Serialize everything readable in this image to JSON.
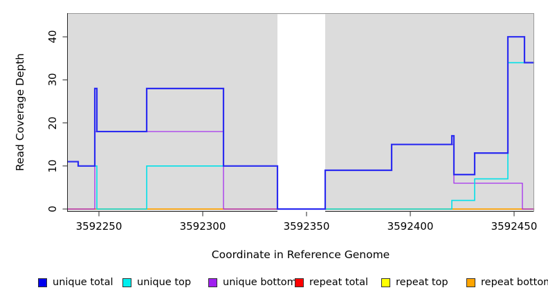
{
  "chart_data": {
    "type": "line",
    "step": true,
    "title": "",
    "xlabel": "Coordinate in Reference Genome",
    "ylabel": "Read Coverage Depth",
    "xlim": [
      3592234.7,
      3592459.7
    ],
    "ylim": [
      0,
      45
    ],
    "x_ticks": [
      3592250,
      3592300,
      3592350,
      3592400,
      3592450
    ],
    "y_ticks": [
      0,
      10,
      20,
      30,
      40
    ],
    "grid": false,
    "plot_background": "#DCDCDC",
    "highlight_band": {
      "x_start": 3592336,
      "x_end": 3592359,
      "color": "#FFFFFF"
    },
    "series": [
      {
        "name": "repeat total",
        "color": "#FF0000",
        "width": 1.2,
        "steps": [
          [
            3592234.7,
            0
          ]
        ]
      },
      {
        "name": "repeat top",
        "color": "#FFFF00",
        "width": 1.2,
        "steps": [
          [
            3592234.7,
            0
          ]
        ]
      },
      {
        "name": "repeat bottom",
        "color": "#FFA500",
        "width": 1.6,
        "steps": [
          [
            3592234.7,
            0
          ]
        ]
      },
      {
        "name": "unique bottom",
        "color": "#A020F0",
        "width": 1.2,
        "steps": [
          [
            3592234.7,
            0
          ],
          [
            3592248,
            18
          ],
          [
            3592310,
            0
          ],
          [
            3592359,
            9
          ],
          [
            3592391,
            15
          ],
          [
            3592421,
            6
          ],
          [
            3592454,
            0
          ]
        ]
      },
      {
        "name": "unique top",
        "color": "#00E0E8",
        "width": 1.6,
        "steps": [
          [
            3592234.7,
            11
          ],
          [
            3592240,
            10
          ],
          [
            3592249,
            0
          ],
          [
            3592273,
            10
          ],
          [
            3592336,
            0
          ],
          [
            3592420,
            2
          ],
          [
            3592431,
            7
          ],
          [
            3592447,
            34
          ]
        ]
      },
      {
        "name": "unique total",
        "color": "#2B2BF0",
        "width": 2.2,
        "steps": [
          [
            3592234.7,
            11
          ],
          [
            3592240,
            10
          ],
          [
            3592248,
            28
          ],
          [
            3592249,
            18
          ],
          [
            3592273,
            28
          ],
          [
            3592310,
            10
          ],
          [
            3592336,
            0
          ],
          [
            3592359,
            9
          ],
          [
            3592391,
            15
          ],
          [
            3592420,
            17
          ],
          [
            3592421,
            8
          ],
          [
            3592431,
            13
          ],
          [
            3592447,
            40
          ],
          [
            3592455,
            34
          ]
        ]
      }
    ]
  },
  "legend": {
    "items": [
      {
        "label": "unique total",
        "color": "#0000EE"
      },
      {
        "label": "unique top",
        "color": "#00EEEE"
      },
      {
        "label": "unique bottom",
        "color": "#A020F0"
      },
      {
        "label": "repeat total",
        "color": "#FF0000"
      },
      {
        "label": "repeat top",
        "color": "#FFFF00"
      },
      {
        "label": "repeat bottom",
        "color": "#FFA500"
      }
    ]
  }
}
